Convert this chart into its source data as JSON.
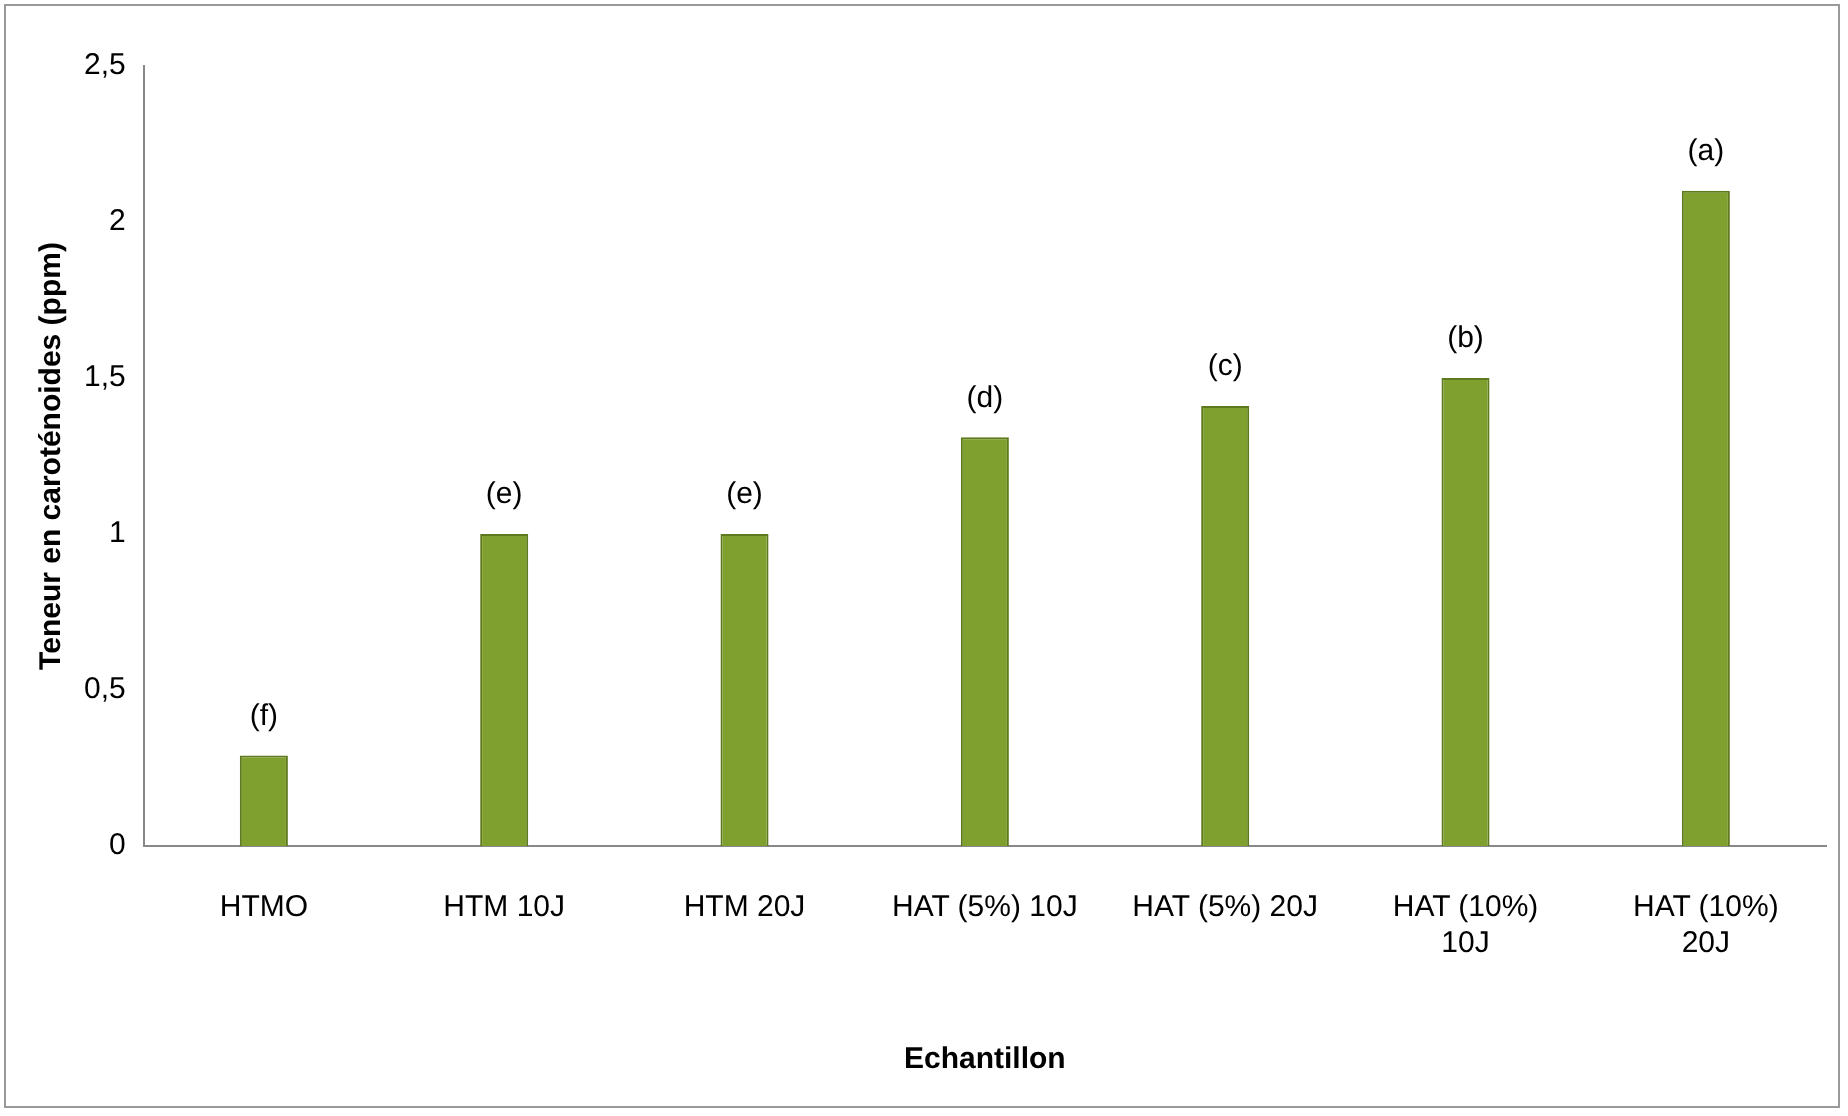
{
  "chart_data": {
    "type": "bar",
    "xlabel": "Echantillon",
    "ylabel": "Teneur en caroténoides (ppm)",
    "categories": [
      "HTMO",
      "HTM 10J",
      "HTM 20J",
      "HAT (5%) 10J",
      "HAT (5%) 20J",
      "HAT (10%) 10J",
      "HAT (10%) 20J"
    ],
    "values": [
      0.29,
      1.0,
      1.0,
      1.31,
      1.41,
      1.5,
      2.1
    ],
    "color": "#7f9f2e",
    "ylim": [
      0,
      2.5
    ],
    "yticks": [
      0,
      {
        "value": 0.5,
        "label": "0,5"
      },
      1,
      {
        "value": 1.5,
        "label": "1,5"
      },
      2,
      {
        "value": 2.5,
        "label": "2,5"
      }
    ],
    "grid": false,
    "legend": false,
    "annotations": [
      {
        "text": "(f)",
        "x": "HTMO",
        "y": 0.29
      },
      {
        "text": "(e)",
        "x": "HTM 10J",
        "y": 1.0
      },
      {
        "text": "(e)",
        "x": "HTM 20J",
        "y": 1.0
      },
      {
        "text": "(d)",
        "x": "HAT (5%) 10J",
        "y": 1.31
      },
      {
        "text": "(c)",
        "x": "HAT (5%) 20J",
        "y": 1.41
      },
      {
        "text": "(b)",
        "x": "HAT (10%) 10J",
        "y": 1.5
      },
      {
        "text": "(a)",
        "x": "HAT (10%) 20J",
        "y": 2.1
      }
    ]
  }
}
